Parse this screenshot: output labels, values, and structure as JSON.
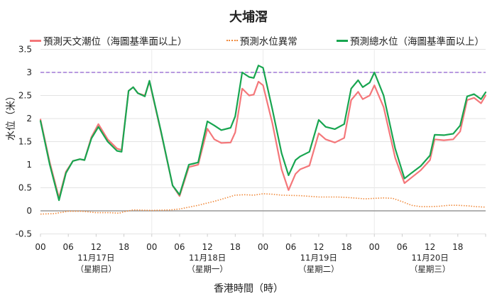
{
  "chart_data": {
    "type": "line",
    "title": "大埔滘",
    "xlabel": "香港時間（時）",
    "ylabel": "水位（米）",
    "ylim": [
      -0.5,
      3.5
    ],
    "yticks": [
      "3.5",
      "3",
      "2.5",
      "2",
      "1.5",
      "1",
      "0.5",
      "0",
      "-0.5"
    ],
    "xlim_hours": [
      0,
      96
    ],
    "xticks": [
      "00",
      "06",
      "12",
      "18",
      "00",
      "06",
      "12",
      "18",
      "00",
      "06",
      "12",
      "18",
      "00",
      "06",
      "12",
      "18"
    ],
    "days": [
      {
        "date": "11月17日",
        "weekday": "（星期日）"
      },
      {
        "date": "11月18日",
        "weekday": "（星期一）"
      },
      {
        "date": "11月19日",
        "weekday": "（星期二）"
      },
      {
        "date": "11月20日",
        "weekday": "（星期三）"
      }
    ],
    "grid": true,
    "legend_position": "top",
    "reference_line": {
      "value": 3.0,
      "color": "#8e5ecf",
      "style": "dashed"
    },
    "series": [
      {
        "name": "預測天文潮位（海圖基準面以上）",
        "color": "#f4777a",
        "style": "solid",
        "x": [
          0,
          2,
          4,
          5.5,
          7,
          8.5,
          9.5,
          11,
          12.5,
          14.5,
          16.5,
          17.5,
          19,
          20,
          21,
          22.5,
          23.5,
          26,
          28.5,
          30,
          32,
          34,
          36,
          37.5,
          39,
          41,
          42,
          43.5,
          45,
          46,
          47,
          48,
          50,
          52,
          53.5,
          55,
          56,
          58,
          60,
          61.5,
          63.5,
          65.5,
          67,
          68.5,
          69.5,
          71,
          72,
          74,
          76.5,
          78.5,
          80,
          82,
          84,
          85,
          87,
          89,
          90.5,
          92,
          93.5,
          95,
          96
        ],
        "values": [
          1.98,
          1.05,
          0.28,
          0.85,
          1.08,
          1.12,
          1.1,
          1.6,
          1.88,
          1.55,
          1.35,
          1.32,
          2.6,
          2.68,
          2.55,
          2.5,
          2.8,
          1.7,
          0.55,
          0.32,
          0.95,
          1.0,
          1.78,
          1.55,
          1.47,
          1.48,
          1.7,
          2.65,
          2.5,
          2.52,
          2.8,
          2.72,
          1.9,
          0.9,
          0.45,
          0.8,
          0.9,
          0.98,
          1.68,
          1.55,
          1.48,
          1.58,
          2.4,
          2.58,
          2.42,
          2.5,
          2.72,
          2.25,
          1.15,
          0.6,
          0.72,
          0.88,
          1.1,
          1.55,
          1.53,
          1.55,
          1.72,
          2.4,
          2.45,
          2.33,
          2.5
        ]
      },
      {
        "name": "預測水位異常",
        "color": "#f08a3c",
        "style": "dotted",
        "x": [
          0,
          3,
          6,
          9,
          12,
          15,
          17,
          18,
          20,
          24,
          28,
          30,
          34,
          38,
          42,
          44,
          46,
          48,
          50,
          52,
          56,
          60,
          64,
          66,
          70,
          72,
          74,
          76,
          78,
          80,
          82,
          84,
          86,
          88,
          90,
          92,
          94,
          96
        ],
        "values": [
          -0.07,
          -0.06,
          -0.01,
          -0.01,
          -0.04,
          -0.04,
          -0.05,
          -0.02,
          0.02,
          0.01,
          0.02,
          0.04,
          0.12,
          0.22,
          0.34,
          0.35,
          0.34,
          0.37,
          0.36,
          0.34,
          0.33,
          0.3,
          0.3,
          0.29,
          0.26,
          0.27,
          0.28,
          0.27,
          0.2,
          0.12,
          0.09,
          0.09,
          0.1,
          0.12,
          0.12,
          0.11,
          0.09,
          0.08
        ]
      },
      {
        "name": "預測總水位（海圖基準面以上）",
        "color": "#18a550",
        "style": "solid",
        "x": [
          0,
          2,
          4,
          5.5,
          7,
          8.5,
          9.5,
          11,
          12.5,
          14.5,
          16.5,
          17.5,
          19,
          20,
          21,
          22.5,
          23.5,
          26,
          28.5,
          30,
          32,
          34,
          36,
          37.5,
          39,
          41,
          42,
          43.5,
          45,
          46,
          47,
          48,
          50,
          52,
          53.5,
          55,
          56,
          58,
          60,
          61.5,
          63.5,
          65.5,
          67,
          68.5,
          69.5,
          71,
          72,
          74,
          76.5,
          78.5,
          80,
          82,
          84,
          85,
          87,
          89,
          90.5,
          92,
          93.5,
          95,
          96
        ],
        "values": [
          1.95,
          1.0,
          0.23,
          0.82,
          1.08,
          1.12,
          1.1,
          1.57,
          1.82,
          1.5,
          1.3,
          1.28,
          2.6,
          2.68,
          2.55,
          2.48,
          2.82,
          1.72,
          0.55,
          0.35,
          1.0,
          1.05,
          1.94,
          1.85,
          1.75,
          1.8,
          2.05,
          3.0,
          2.9,
          2.88,
          3.15,
          3.1,
          2.2,
          1.25,
          0.77,
          1.1,
          1.18,
          1.28,
          1.97,
          1.82,
          1.77,
          1.88,
          2.65,
          2.83,
          2.68,
          2.78,
          3.0,
          2.5,
          1.35,
          0.7,
          0.82,
          0.97,
          1.2,
          1.65,
          1.64,
          1.67,
          1.85,
          2.48,
          2.53,
          2.42,
          2.57
        ]
      }
    ]
  },
  "legend": {
    "astro": "預測天文潮位（海圖基準面以上）",
    "anomaly": "預測水位異常",
    "total": "預測總水位（海圖基準面以上）"
  }
}
